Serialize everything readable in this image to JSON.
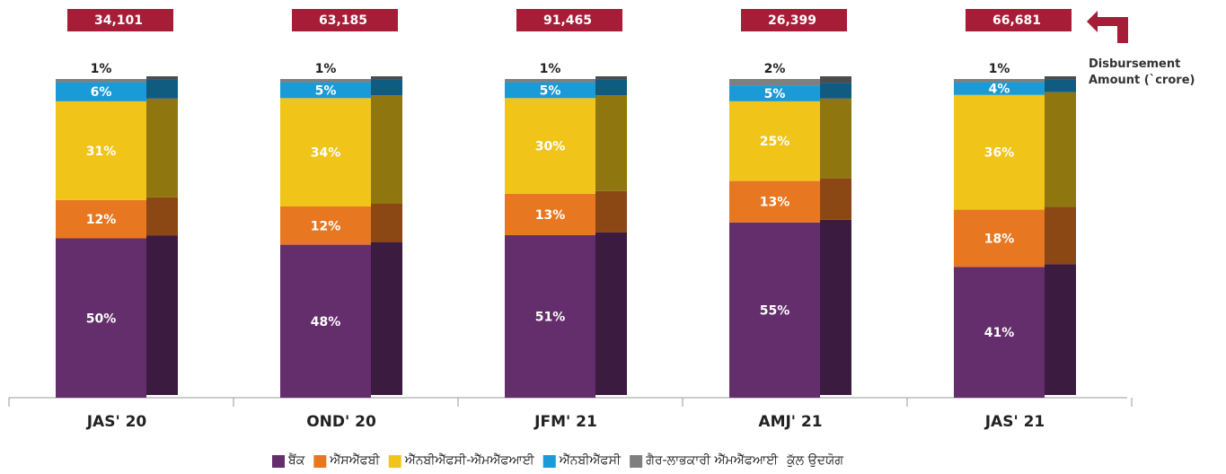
{
  "chart_data": {
    "type": "stacked_bar",
    "categories": [
      "JAS' 20",
      "OND' 20",
      "JFM' 21",
      "AMJ' 21",
      "JAS' 21"
    ],
    "series": [
      {
        "name": "ਬੈਂਕ",
        "color": "#642d6b",
        "values": [
          50,
          48,
          51,
          55,
          41
        ],
        "value_labels": [
          "50%",
          "48%",
          "51%",
          "55%",
          "41%"
        ]
      },
      {
        "name": "ਐੱਸਐੱਫਬੀ",
        "color": "#e87722",
        "values": [
          12,
          12,
          13,
          13,
          18
        ],
        "value_labels": [
          "12%",
          "12%",
          "13%",
          "13%",
          "18%"
        ]
      },
      {
        "name": "ਐੱਨਬੀਐੱਫਸੀ-ਐੱਮਐੱਫਆਈ",
        "color": "#f0c419",
        "values": [
          31,
          34,
          30,
          25,
          36
        ],
        "value_labels": [
          "31%",
          "34%",
          "30%",
          "25%",
          "36%"
        ]
      },
      {
        "name": "ਐੱਨਬੀਐੱਫਸੀ",
        "color": "#1a9ad6",
        "values": [
          6,
          5,
          5,
          5,
          4
        ],
        "value_labels": [
          "6%",
          "5%",
          "5%",
          "5%",
          "4%"
        ]
      },
      {
        "name": "ਗੈਰ-ਲਾਭਕਾਰੀ ਐੱਮਐੱਫਆਈ",
        "color": "#7f7f82",
        "values": [
          1,
          1,
          1,
          2,
          1
        ],
        "value_labels": [
          "1%",
          "1%",
          "1%",
          "2%",
          "1%"
        ]
      }
    ],
    "legend_note": "ਕੁੱਲ ਉਦਯੋਗ",
    "totals": {
      "color": "#a51d37",
      "values": [
        34101,
        63185,
        91465,
        26399,
        66681
      ],
      "value_labels": [
        "34,101",
        "63,185",
        "91,465",
        "26,399",
        "66,681"
      ]
    },
    "annotation": "Disbursement Amount (`crore)",
    "ylim": [
      0,
      100
    ]
  }
}
